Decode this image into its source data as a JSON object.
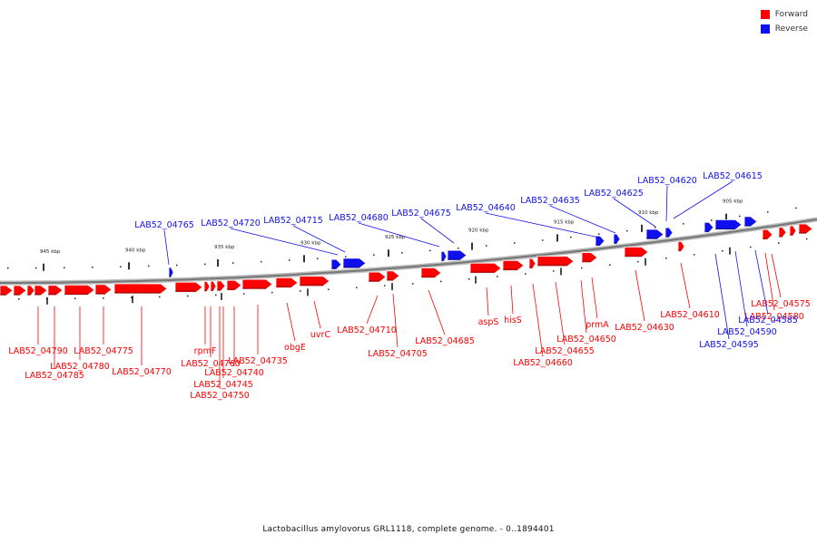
{
  "legend": {
    "forward": {
      "label": "Forward",
      "color": "#ff0000"
    },
    "reverse": {
      "label": "Reverse",
      "color": "#1010ee"
    }
  },
  "caption": "Lactobacillus amylovorus GRL1118, complete genome. - 0..1894401",
  "ticks": [
    "945 kbp",
    "940 kbp",
    "935 kbp",
    "930 kbp",
    "925 kbp",
    "920 kbp",
    "915 kbp",
    "910 kbp",
    "905 kbp"
  ],
  "forward_labels": [
    "LAB52_04790",
    "LAB52_04785",
    "LAB52_04780",
    "LAB52_04775",
    "LAB52_04770",
    "rpmF",
    "LAB52_04760",
    "LAB52_04750",
    "LAB52_04745",
    "LAB52_04740",
    "LAB52_04735",
    "obgE",
    "uvrC",
    "LAB52_04710",
    "LAB52_04705",
    "LAB52_04685",
    "aspS",
    "hisS",
    "LAB52_04660",
    "LAB52_04655",
    "LAB52_04650",
    "prmA",
    "LAB52_04630",
    "LAB52_04610",
    "LAB52_04575",
    "LAB52_04580"
  ],
  "reverse_labels": [
    "LAB52_04765",
    "LAB52_04720",
    "LAB52_04715",
    "LAB52_04680",
    "LAB52_04675",
    "LAB52_04640",
    "LAB52_04635",
    "LAB52_04625",
    "LAB52_04620",
    "LAB52_04615",
    "LAB52_04585",
    "LAB52_04590",
    "LAB52_04595"
  ]
}
